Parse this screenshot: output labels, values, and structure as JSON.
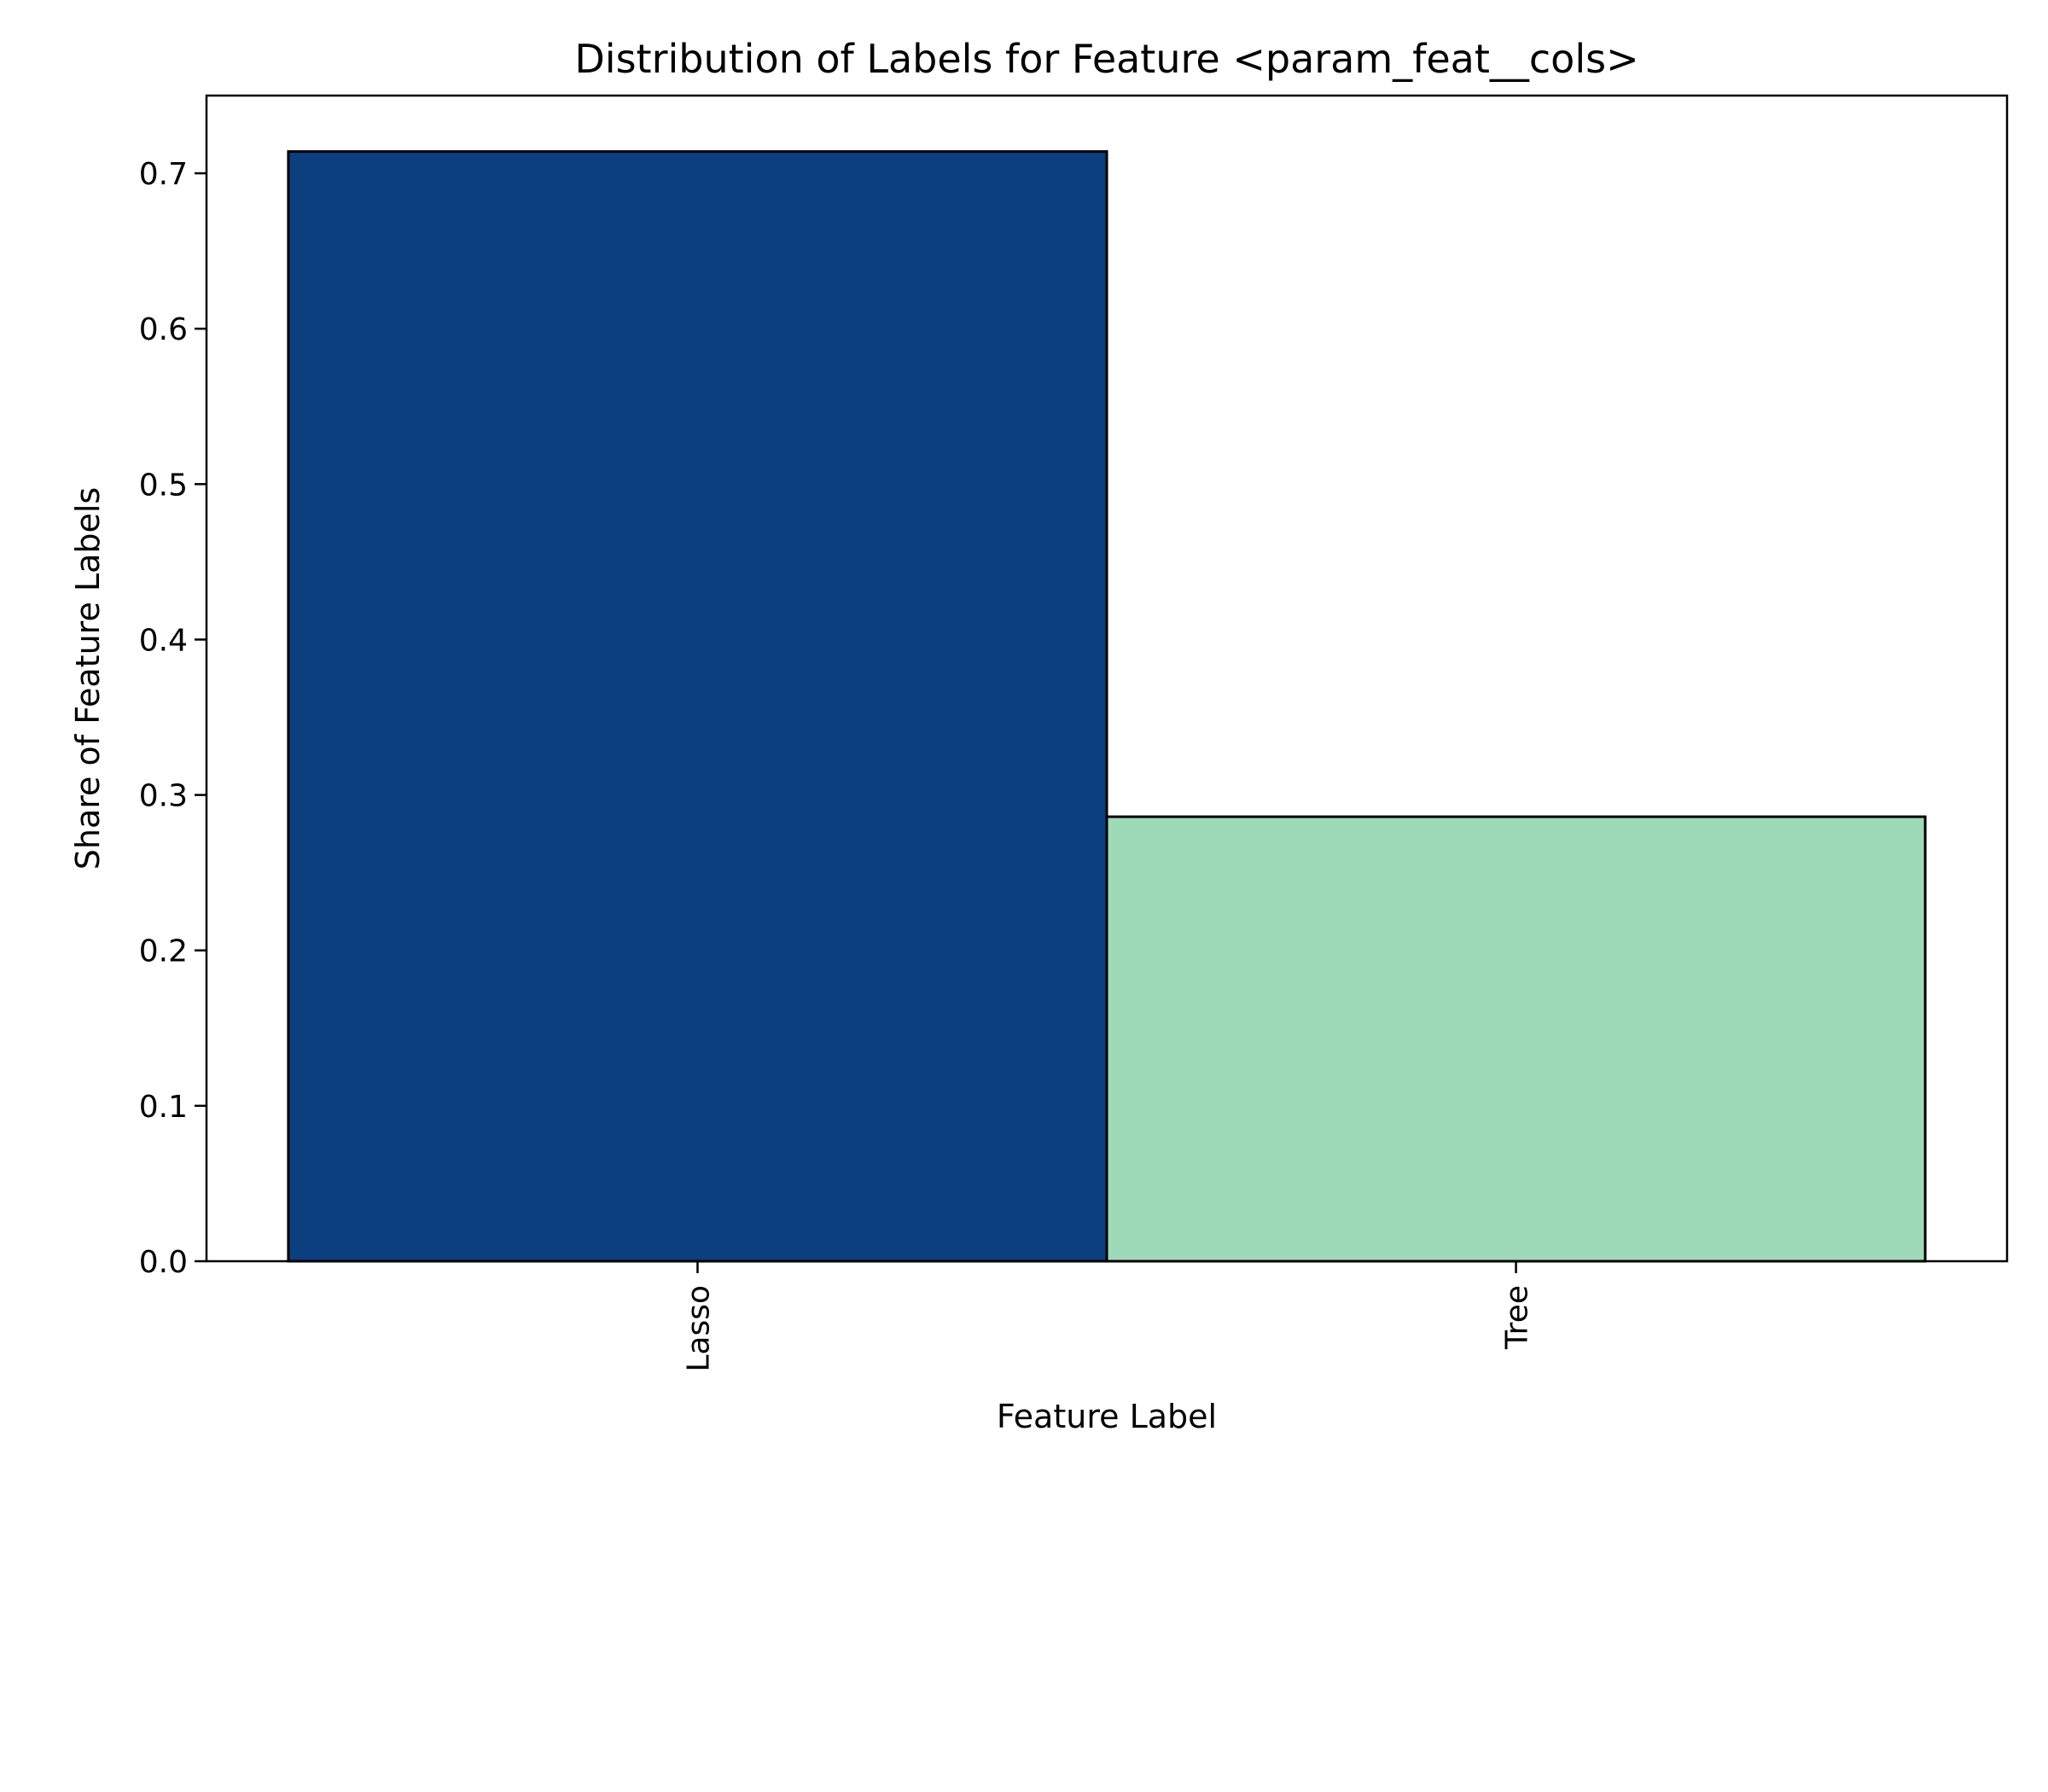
{
  "chart_data": {
    "type": "bar",
    "title": "Distribution of Labels for Feature <param_feat__cols>",
    "xlabel": "Feature Label",
    "ylabel": "Share of Feature Labels",
    "categories": [
      "Lasso",
      "Tree"
    ],
    "values": [
      0.714,
      0.286
    ],
    "bar_colors": [
      "#0b3f7f",
      "#9fdab8"
    ],
    "bar_edge_color": "#000000",
    "ylim": [
      0,
      0.75
    ],
    "yticks": [
      "0.0",
      "0.1",
      "0.2",
      "0.3",
      "0.4",
      "0.5",
      "0.6",
      "0.7"
    ],
    "x_tick_rotation": "vertical",
    "grid": false,
    "legend": "none"
  }
}
